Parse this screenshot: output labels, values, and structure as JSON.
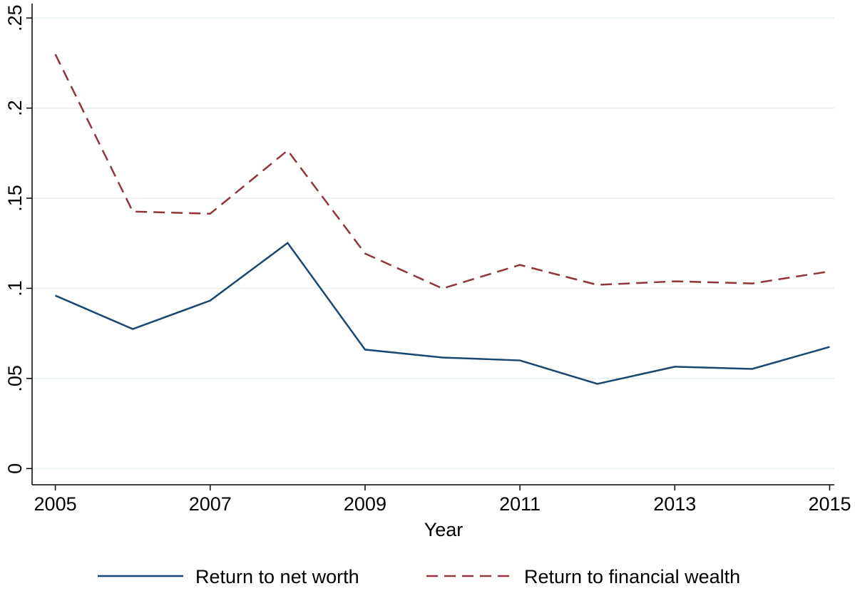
{
  "chart_data": {
    "type": "line",
    "xlabel": "Year",
    "x": [
      2005,
      2006,
      2007,
      2008,
      2009,
      2010,
      2011,
      2012,
      2013,
      2014,
      2015
    ],
    "series": [
      {
        "name": "Return to net worth",
        "color": "#1a476f",
        "dash": "solid",
        "values": [
          0.096,
          0.0774,
          0.0932,
          0.1252,
          0.066,
          0.0616,
          0.06,
          0.047,
          0.0565,
          0.0553,
          0.0675
        ]
      },
      {
        "name": "Return to financial wealth",
        "color": "#90353b",
        "dash": "dashed",
        "values": [
          0.2299,
          0.1426,
          0.1414,
          0.1765,
          0.1193,
          0.0999,
          0.113,
          0.1019,
          0.1039,
          0.1027,
          0.1094
        ]
      }
    ],
    "xlim": [
      2004.7,
      2015.06
    ],
    "xticks": [
      2005,
      2007,
      2009,
      2011,
      2013,
      2015
    ],
    "ylim": [
      -0.009,
      0.258
    ],
    "yticks": [
      0,
      {
        "value": 0.05,
        "label": ".05"
      },
      {
        "value": 0.1,
        "label": ".1"
      },
      {
        "value": 0.15,
        "label": ".15"
      },
      {
        "value": 0.2,
        "label": ".2"
      },
      {
        "value": 0.25,
        "label": ".25"
      }
    ],
    "grid": true,
    "legend": "bottom"
  }
}
